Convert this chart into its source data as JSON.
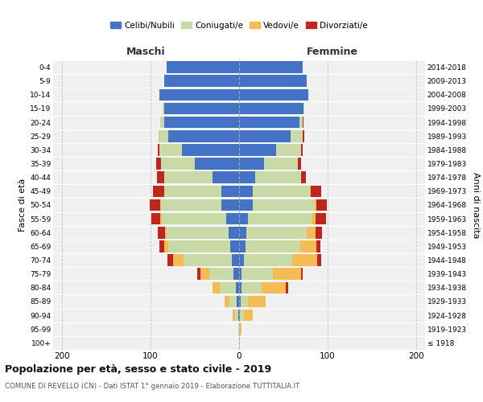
{
  "age_groups": [
    "100+",
    "95-99",
    "90-94",
    "85-89",
    "80-84",
    "75-79",
    "70-74",
    "65-69",
    "60-64",
    "55-59",
    "50-54",
    "45-49",
    "40-44",
    "35-39",
    "30-34",
    "25-29",
    "20-24",
    "15-19",
    "10-14",
    "5-9",
    "0-4"
  ],
  "birth_years": [
    "≤ 1918",
    "1919-1923",
    "1924-1928",
    "1929-1933",
    "1934-1938",
    "1939-1943",
    "1944-1948",
    "1949-1953",
    "1954-1958",
    "1959-1963",
    "1964-1968",
    "1969-1973",
    "1974-1978",
    "1979-1983",
    "1984-1988",
    "1989-1993",
    "1994-1998",
    "1999-2003",
    "2004-2008",
    "2009-2013",
    "2014-2018"
  ],
  "males": {
    "celibi": [
      0,
      0,
      1,
      3,
      4,
      6,
      8,
      10,
      12,
      15,
      20,
      20,
      30,
      50,
      65,
      80,
      85,
      85,
      90,
      85,
      82
    ],
    "coniugati": [
      0,
      1,
      4,
      8,
      18,
      28,
      55,
      70,
      70,
      72,
      68,
      65,
      55,
      38,
      25,
      10,
      4,
      1,
      0,
      0,
      0
    ],
    "vedovi": [
      0,
      0,
      2,
      5,
      8,
      10,
      12,
      5,
      2,
      2,
      1,
      0,
      0,
      0,
      0,
      1,
      0,
      0,
      0,
      0,
      0
    ],
    "divorziati": [
      0,
      0,
      0,
      0,
      0,
      3,
      6,
      5,
      8,
      10,
      12,
      12,
      8,
      6,
      2,
      0,
      0,
      0,
      0,
      0,
      0
    ]
  },
  "females": {
    "nubili": [
      0,
      0,
      1,
      2,
      3,
      3,
      5,
      7,
      8,
      10,
      15,
      15,
      18,
      28,
      42,
      58,
      68,
      73,
      78,
      76,
      72
    ],
    "coniugate": [
      0,
      1,
      4,
      8,
      22,
      35,
      55,
      62,
      68,
      72,
      70,
      65,
      52,
      38,
      28,
      14,
      4,
      1,
      0,
      0,
      0
    ],
    "vedove": [
      0,
      2,
      10,
      20,
      28,
      32,
      28,
      18,
      10,
      4,
      2,
      1,
      0,
      0,
      0,
      0,
      0,
      0,
      0,
      0,
      0
    ],
    "divorziate": [
      0,
      0,
      0,
      0,
      2,
      2,
      5,
      5,
      8,
      12,
      12,
      12,
      5,
      4,
      2,
      2,
      1,
      0,
      0,
      0,
      0
    ]
  },
  "colors": {
    "celibi": "#4472C4",
    "coniugati": "#c8dba6",
    "vedovi": "#f5bc55",
    "divorziati": "#c0261e"
  },
  "xlim": [
    -210,
    210
  ],
  "xticks": [
    -200,
    -100,
    0,
    100,
    200
  ],
  "xticklabels": [
    "200",
    "100",
    "0",
    "100",
    "200"
  ],
  "title": "Popolazione per età, sesso e stato civile - 2019",
  "subtitle": "COMUNE DI REVELLO (CN) - Dati ISTAT 1° gennaio 2019 - Elaborazione TUTTITALIA.IT",
  "ylabel_left": "Fasce di età",
  "ylabel_right": "Anni di nascita",
  "label_maschi": "Maschi",
  "label_femmine": "Femmine",
  "legend_labels": [
    "Celibi/Nubili",
    "Coniugati/e",
    "Vedovi/e",
    "Divorziati/e"
  ],
  "bg_color": "#f0f0f0",
  "bar_height": 0.85
}
